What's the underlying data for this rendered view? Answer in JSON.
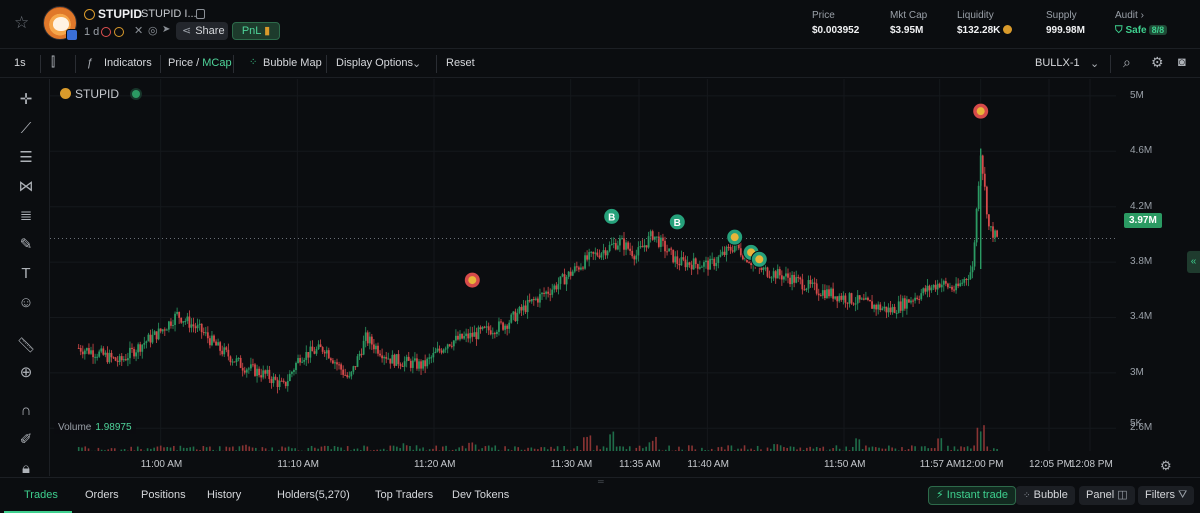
{
  "token": {
    "symbol": "STUPID",
    "name": "STUPID I...",
    "age": "1 d",
    "share_label": "Share",
    "pnl_label": "PnL"
  },
  "stats": {
    "price": {
      "label": "Price",
      "value": "$0.003952"
    },
    "mcap": {
      "label": "Mkt Cap",
      "value": "$3.95M"
    },
    "liquidity": {
      "label": "Liquidity",
      "value": "$132.28K"
    },
    "supply": {
      "label": "Supply",
      "value": "999.98M"
    },
    "audit": {
      "label": "Audit",
      "status": "Safe",
      "score": "8/8"
    }
  },
  "toolbar": {
    "interval": "1s",
    "indicators": "Indicators",
    "price_label": "Price",
    "mcap_label": "MCap",
    "bubble_map": "Bubble Map",
    "display_options": "Display Options",
    "reset": "Reset",
    "chart_source": "BULLX-1"
  },
  "chart": {
    "title": "STUPID",
    "volume_label": "Volume",
    "volume_value": "1.98975",
    "current_tag": "3.97M"
  },
  "chart_data": {
    "type": "candlestick",
    "title": "STUPID",
    "ylabel": "Market Cap",
    "y_ticks": [
      "5M",
      "4.6M",
      "4.2M",
      "3.8M",
      "3.4M",
      "3M",
      "2.6M"
    ],
    "volume_tick": "5K",
    "x_ticks": [
      "11:00 AM",
      "11:10 AM",
      "11:20 AM",
      "11:30 AM",
      "11:35 AM",
      "11:40 AM",
      "11:50 AM",
      "11:57 AM",
      "12:00 PM",
      "12:05 PM",
      "12:08 PM"
    ],
    "ylim": [
      2.45,
      5.05
    ],
    "current_value": "3.97M",
    "path_points": [
      [
        10.9,
        3.18
      ],
      [
        10.92,
        3.15
      ],
      [
        10.95,
        3.08
      ],
      [
        10.98,
        3.22
      ],
      [
        11.0,
        3.3
      ],
      [
        11.02,
        3.42
      ],
      [
        11.05,
        3.3
      ],
      [
        11.07,
        3.18
      ],
      [
        11.1,
        3.05
      ],
      [
        11.13,
        2.98
      ],
      [
        11.15,
        2.9
      ],
      [
        11.17,
        3.12
      ],
      [
        11.2,
        3.18
      ],
      [
        11.23,
        2.95
      ],
      [
        11.25,
        3.25
      ],
      [
        11.28,
        3.1
      ],
      [
        11.32,
        3.05
      ],
      [
        11.35,
        3.22
      ],
      [
        11.38,
        3.27
      ],
      [
        11.42,
        3.35
      ],
      [
        11.45,
        3.5
      ],
      [
        11.48,
        3.62
      ],
      [
        11.52,
        3.82
      ],
      [
        11.56,
        3.95
      ],
      [
        11.58,
        3.85
      ],
      [
        11.6,
        4.0
      ],
      [
        11.63,
        3.8
      ],
      [
        11.67,
        3.78
      ],
      [
        11.7,
        3.92
      ],
      [
        11.73,
        3.75
      ],
      [
        11.77,
        3.68
      ],
      [
        11.8,
        3.6
      ],
      [
        11.83,
        3.55
      ],
      [
        11.86,
        3.5
      ],
      [
        11.89,
        3.45
      ],
      [
        11.92,
        3.55
      ],
      [
        11.95,
        3.65
      ],
      [
        11.97,
        3.6
      ],
      [
        11.99,
        3.75
      ],
      [
        12.0,
        4.6
      ],
      [
        12.01,
        4.05
      ],
      [
        12.02,
        3.97
      ]
    ],
    "volume_bars": [
      [
        11.0,
        0.15
      ],
      [
        11.1,
        0.2
      ],
      [
        11.2,
        0.18
      ],
      [
        11.3,
        0.25
      ],
      [
        11.38,
        0.3
      ],
      [
        11.52,
        0.55
      ],
      [
        11.55,
        0.8
      ],
      [
        11.6,
        0.45
      ],
      [
        11.75,
        0.35
      ],
      [
        11.85,
        0.4
      ],
      [
        11.95,
        0.6
      ],
      [
        12.0,
        1.0
      ]
    ],
    "markers": [
      {
        "type": "sell",
        "x": 11.38,
        "y": 3.67
      },
      {
        "type": "buy",
        "label": "B",
        "x": 11.55,
        "y": 4.13
      },
      {
        "type": "buy",
        "label": "B",
        "x": 11.63,
        "y": 4.09
      },
      {
        "type": "sell-dev",
        "x": 11.7,
        "y": 3.98
      },
      {
        "type": "sell-dev",
        "x": 11.72,
        "y": 3.87
      },
      {
        "type": "sell-dev",
        "x": 11.73,
        "y": 3.82
      },
      {
        "type": "sell",
        "x": 12.0,
        "y": 4.89
      }
    ]
  },
  "bottom": {
    "tabs": [
      "Trades",
      "Orders",
      "Positions",
      "History",
      "Holders(5,270)",
      "Top Traders",
      "Dev Tokens"
    ],
    "instant_trade": "Instant trade",
    "bubble": "Bubble",
    "panel": "Panel",
    "filters": "Filters"
  },
  "colors": {
    "accent": "#3ecf8e",
    "up": "#2b9a63",
    "down": "#d64a4a",
    "background": "#0b0d10"
  },
  "icons": [
    "star-icon",
    "copy-icon",
    "share-icon",
    "crosshair-icon",
    "trendline-icon",
    "fib-icon",
    "pattern-icon",
    "text-icon",
    "emoji-icon",
    "ruler-icon",
    "zoom-icon",
    "magnet-icon",
    "lock-icon",
    "settings-icon",
    "camera-icon",
    "search-icon"
  ]
}
